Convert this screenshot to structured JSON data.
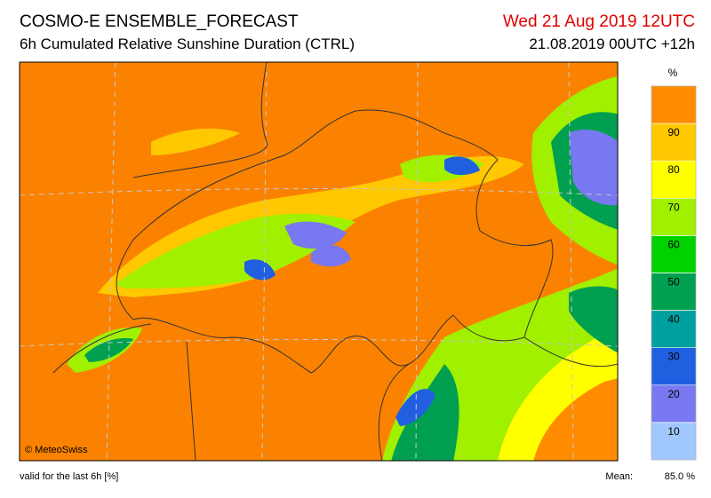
{
  "header": {
    "title": "COSMO-E ENSEMBLE_FORECAST",
    "subtitle": "6h Cumulated Relative Sunshine Duration (CTRL)",
    "valid_time": "Wed 21 Aug 2019 12UTC",
    "run": "21.08.2019 00UTC +12h"
  },
  "legend": {
    "unit": "%",
    "ticks": [
      10,
      20,
      30,
      40,
      50,
      60,
      70,
      80,
      90
    ],
    "colors": [
      "#a0c8ff",
      "#7878f0",
      "#2060e0",
      "#00a0a0",
      "#00a050",
      "#00d200",
      "#a0f000",
      "#ffff00",
      "#ffc800",
      "#ff8c00"
    ]
  },
  "footer": {
    "credit": "© MeteoSwiss",
    "note": "valid for the last 6h [%]",
    "mean_label": "Mean:",
    "mean": "85.0 %"
  }
}
